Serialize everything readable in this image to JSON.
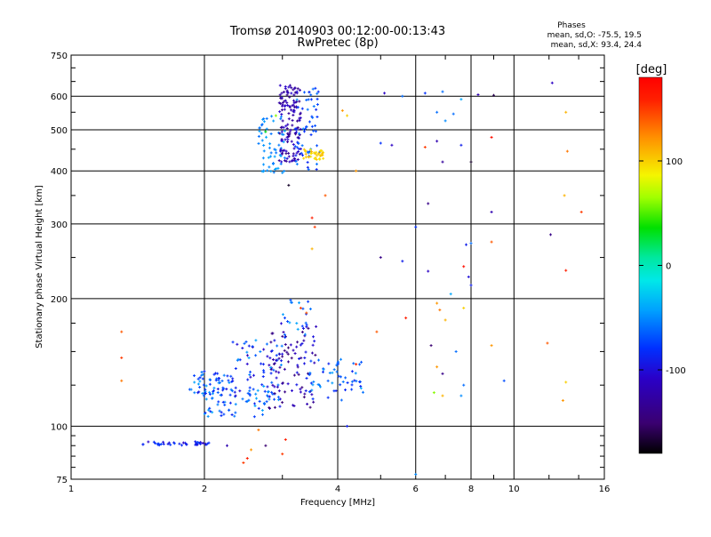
{
  "chart_data": {
    "type": "scatter",
    "title": "Tromsø 20140903 00:12:00-00:13:43",
    "subtitle": "RwPretec (8p)",
    "xlabel": "Frequency [MHz]",
    "ylabel": "Stationary phase Virtual Height [km]",
    "x_scale": "log",
    "y_scale": "log",
    "xlim": [
      1,
      16
    ],
    "ylim": [
      75,
      750
    ],
    "x_ticks": [
      1,
      2,
      4,
      6,
      8,
      10,
      16
    ],
    "x_tick_labels": [
      "1",
      "2",
      "4",
      "6",
      "8",
      "10",
      "16"
    ],
    "y_ticks": [
      75,
      100,
      200,
      300,
      400,
      500,
      600,
      750
    ],
    "y_tick_labels": [
      "75",
      "100",
      "200",
      "300",
      "400",
      "500",
      "600",
      "750"
    ],
    "grid": true,
    "stats": {
      "heading": "Phases",
      "line1": "mean, sd,O: -75.5, 19.5",
      "line2": "mean, sd,X:  93.4, 24.4"
    },
    "colorbar": {
      "label": "[deg]",
      "range": [
        -180,
        180
      ],
      "ticks": [
        100,
        0,
        -100
      ],
      "tick_labels": [
        "100",
        "0",
        "-100"
      ],
      "colormap": "rainbow (black-purple-blue-cyan-green-yellow-red)"
    },
    "point_clusters": [
      {
        "x": [
          1.45,
          2.05
        ],
        "y": [
          90,
          92
        ],
        "n": 40,
        "color_deg": [
          -110,
          -70
        ]
      },
      {
        "x": [
          1.85,
          2.3
        ],
        "y": [
          118,
          135
        ],
        "n": 55,
        "color_deg": [
          -100,
          -40
        ]
      },
      {
        "x": [
          2.0,
          2.8
        ],
        "y": [
          105,
          125
        ],
        "n": 60,
        "color_deg": [
          -90,
          -40
        ]
      },
      {
        "x": [
          2.3,
          3.0
        ],
        "y": [
          115,
          160
        ],
        "n": 70,
        "color_deg": [
          -120,
          -40
        ]
      },
      {
        "x": [
          2.8,
          3.6
        ],
        "y": [
          110,
          175
        ],
        "n": 90,
        "color_deg": [
          -150,
          -90
        ]
      },
      {
        "x": [
          3.4,
          4.6
        ],
        "y": [
          115,
          145
        ],
        "n": 55,
        "color_deg": [
          -90,
          -40
        ]
      },
      {
        "x": [
          3.0,
          3.5
        ],
        "y": [
          160,
          200
        ],
        "n": 20,
        "color_deg": [
          -80,
          -40
        ]
      },
      {
        "x": [
          2.65,
          3.05
        ],
        "y": [
          395,
          540
        ],
        "n": 60,
        "color_deg": [
          -60,
          -40
        ]
      },
      {
        "x": [
          2.95,
          3.3
        ],
        "y": [
          420,
          640
        ],
        "n": 140,
        "color_deg": [
          -140,
          -100
        ]
      },
      {
        "x": [
          3.2,
          3.65
        ],
        "y": [
          400,
          630
        ],
        "n": 60,
        "color_deg": [
          -90,
          -50
        ]
      },
      {
        "x": [
          3.35,
          3.75
        ],
        "y": [
          425,
          450
        ],
        "n": 35,
        "color_deg": [
          90,
          110
        ]
      }
    ],
    "points": [
      {
        "x": 1.3,
        "y": 167,
        "deg": 140
      },
      {
        "x": 1.3,
        "y": 145,
        "deg": 150
      },
      {
        "x": 1.3,
        "y": 128,
        "deg": 130
      },
      {
        "x": 2.45,
        "y": 82,
        "deg": 150
      },
      {
        "x": 2.5,
        "y": 84,
        "deg": 160
      },
      {
        "x": 2.55,
        "y": 88,
        "deg": 120
      },
      {
        "x": 3.05,
        "y": 93,
        "deg": 160
      },
      {
        "x": 3.0,
        "y": 86,
        "deg": 150
      },
      {
        "x": 2.75,
        "y": 90,
        "deg": -150
      },
      {
        "x": 3.5,
        "y": 310,
        "deg": 160
      },
      {
        "x": 3.55,
        "y": 295,
        "deg": 150
      },
      {
        "x": 3.5,
        "y": 262,
        "deg": 110
      },
      {
        "x": 3.1,
        "y": 370,
        "deg": -170
      },
      {
        "x": 3.75,
        "y": 350,
        "deg": 140
      },
      {
        "x": 5.1,
        "y": 610,
        "deg": -110
      },
      {
        "x": 5.6,
        "y": 600,
        "deg": -60
      },
      {
        "x": 6.3,
        "y": 610,
        "deg": -80
      },
      {
        "x": 6.9,
        "y": 615,
        "deg": -60
      },
      {
        "x": 7.6,
        "y": 590,
        "deg": -40
      },
      {
        "x": 8.3,
        "y": 605,
        "deg": -120
      },
      {
        "x": 9.0,
        "y": 603,
        "deg": -160
      },
      {
        "x": 12.2,
        "y": 645,
        "deg": -110
      },
      {
        "x": 13.1,
        "y": 550,
        "deg": 110
      },
      {
        "x": 4.1,
        "y": 555,
        "deg": 120
      },
      {
        "x": 4.2,
        "y": 540,
        "deg": 100
      },
      {
        "x": 6.7,
        "y": 550,
        "deg": -60
      },
      {
        "x": 7.0,
        "y": 525,
        "deg": -50
      },
      {
        "x": 7.3,
        "y": 545,
        "deg": -60
      },
      {
        "x": 5.0,
        "y": 465,
        "deg": -80
      },
      {
        "x": 5.3,
        "y": 460,
        "deg": -110
      },
      {
        "x": 6.3,
        "y": 455,
        "deg": 150
      },
      {
        "x": 6.7,
        "y": 470,
        "deg": -120
      },
      {
        "x": 7.6,
        "y": 460,
        "deg": -90
      },
      {
        "x": 8.9,
        "y": 480,
        "deg": 170
      },
      {
        "x": 6.9,
        "y": 420,
        "deg": -130
      },
      {
        "x": 8.0,
        "y": 420,
        "deg": -170
      },
      {
        "x": 13.2,
        "y": 445,
        "deg": 130
      },
      {
        "x": 4.4,
        "y": 400,
        "deg": 120
      },
      {
        "x": 13.0,
        "y": 350,
        "deg": 110
      },
      {
        "x": 14.2,
        "y": 320,
        "deg": 150
      },
      {
        "x": 8.9,
        "y": 320,
        "deg": -120
      },
      {
        "x": 6.4,
        "y": 335,
        "deg": -140
      },
      {
        "x": 7.8,
        "y": 268,
        "deg": -90
      },
      {
        "x": 8.0,
        "y": 270,
        "deg": -60
      },
      {
        "x": 8.9,
        "y": 272,
        "deg": 140
      },
      {
        "x": 5.0,
        "y": 250,
        "deg": -140
      },
      {
        "x": 5.6,
        "y": 245,
        "deg": -90
      },
      {
        "x": 6.4,
        "y": 232,
        "deg": -110
      },
      {
        "x": 7.7,
        "y": 238,
        "deg": 170
      },
      {
        "x": 7.9,
        "y": 225,
        "deg": -100
      },
      {
        "x": 8.0,
        "y": 215,
        "deg": -90
      },
      {
        "x": 12.1,
        "y": 283,
        "deg": -140
      },
      {
        "x": 13.1,
        "y": 233,
        "deg": 160
      },
      {
        "x": 7.2,
        "y": 205,
        "deg": -40
      },
      {
        "x": 6.7,
        "y": 195,
        "deg": 120
      },
      {
        "x": 6.8,
        "y": 188,
        "deg": 130
      },
      {
        "x": 7.0,
        "y": 178,
        "deg": 110
      },
      {
        "x": 7.7,
        "y": 190,
        "deg": 100
      },
      {
        "x": 5.7,
        "y": 180,
        "deg": 160
      },
      {
        "x": 6.5,
        "y": 155,
        "deg": -150
      },
      {
        "x": 7.4,
        "y": 150,
        "deg": -60
      },
      {
        "x": 6.7,
        "y": 138,
        "deg": 120
      },
      {
        "x": 6.9,
        "y": 133,
        "deg": -140
      },
      {
        "x": 7.7,
        "y": 125,
        "deg": -60
      },
      {
        "x": 6.6,
        "y": 120,
        "deg": 60
      },
      {
        "x": 6.9,
        "y": 118,
        "deg": 110
      },
      {
        "x": 7.6,
        "y": 118,
        "deg": -50
      },
      {
        "x": 8.9,
        "y": 155,
        "deg": 120
      },
      {
        "x": 9.5,
        "y": 128,
        "deg": -70
      },
      {
        "x": 11.9,
        "y": 157,
        "deg": 140
      },
      {
        "x": 13.1,
        "y": 127,
        "deg": 100
      },
      {
        "x": 12.9,
        "y": 115,
        "deg": 120
      },
      {
        "x": 4.4,
        "y": 140,
        "deg": 160
      },
      {
        "x": 4.9,
        "y": 167,
        "deg": 140
      },
      {
        "x": 4.2,
        "y": 100,
        "deg": -90
      },
      {
        "x": 6.0,
        "y": 77,
        "deg": -50
      },
      {
        "x": 6.0,
        "y": 295,
        "deg": -80
      },
      {
        "x": 2.25,
        "y": 90,
        "deg": -120
      },
      {
        "x": 2.65,
        "y": 98,
        "deg": 130
      },
      {
        "x": 3.3,
        "y": 190,
        "deg": 150
      },
      {
        "x": 3.4,
        "y": 185,
        "deg": 140
      },
      {
        "x": 2.9,
        "y": 540,
        "deg": 60
      },
      {
        "x": 2.75,
        "y": 495,
        "deg": 40
      }
    ]
  }
}
